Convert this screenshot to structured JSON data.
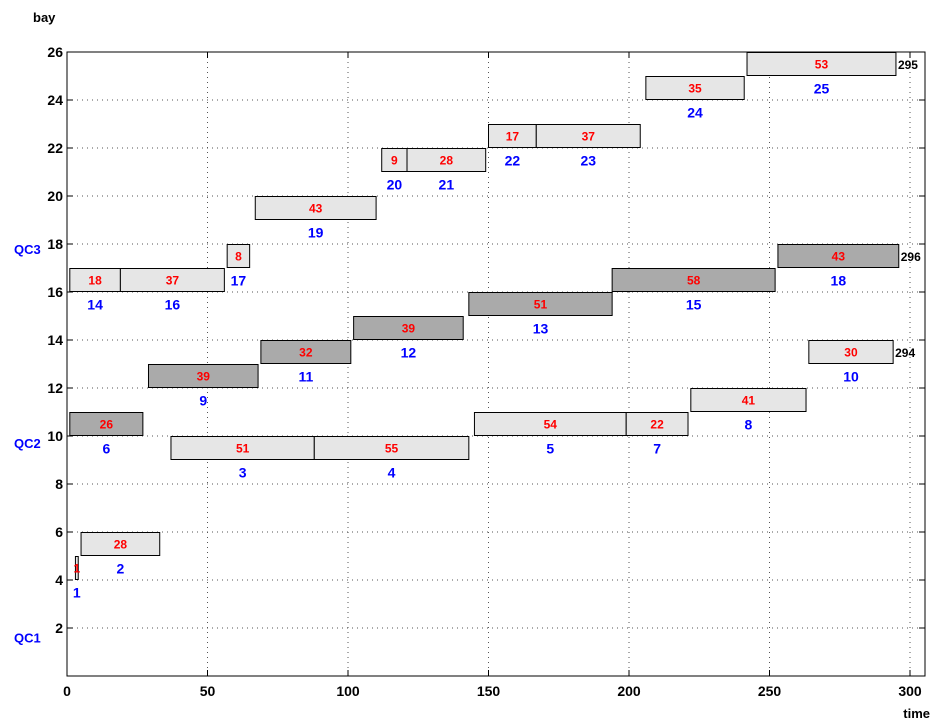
{
  "chart_data": {
    "type": "gantt",
    "title": "",
    "xlabel": "time",
    "ylabel": "bay",
    "xlim": [
      0,
      305
    ],
    "ylim": [
      0,
      26
    ],
    "xticks": [
      0,
      50,
      100,
      150,
      200,
      250,
      300
    ],
    "yticks": [
      2,
      4,
      6,
      8,
      10,
      12,
      14,
      16,
      18,
      20,
      22,
      24,
      26
    ],
    "grid": true,
    "colors": {
      "light_bar": "#e6e6e6",
      "dark_bar": "#aaaaaa",
      "duration_text": "#ff0000",
      "id_text": "#0000ff",
      "qc_text": "#0000ff",
      "end_text": "#000000"
    },
    "crane_labels": [
      {
        "label": "QC1",
        "bay": 1.6
      },
      {
        "label": "QC2",
        "bay": 9.7
      },
      {
        "label": "QC3",
        "bay": 17.8
      }
    ],
    "tasks": [
      {
        "id": "1",
        "start": 3,
        "duration": "1",
        "end": 4,
        "bay": 4.5,
        "shade": "light"
      },
      {
        "id": "2",
        "start": 5,
        "duration": "28",
        "end": 33,
        "bay": 5.5,
        "shade": "light"
      },
      {
        "id": "6",
        "start": 1,
        "duration": "26",
        "end": 27,
        "bay": 10.5,
        "shade": "dark"
      },
      {
        "id": "3",
        "start": 37,
        "duration": "51",
        "end": 88,
        "bay": 9.5,
        "shade": "light"
      },
      {
        "id": "4",
        "start": 88,
        "duration": "55",
        "end": 143,
        "bay": 9.5,
        "shade": "light"
      },
      {
        "id": "9",
        "start": 29,
        "duration": "39",
        "end": 68,
        "bay": 12.5,
        "shade": "dark"
      },
      {
        "id": "11",
        "start": 69,
        "duration": "32",
        "end": 101,
        "bay": 13.5,
        "shade": "dark"
      },
      {
        "id": "12",
        "start": 102,
        "duration": "39",
        "end": 141,
        "bay": 14.5,
        "shade": "dark"
      },
      {
        "id": "13",
        "start": 143,
        "duration": "51",
        "end": 194,
        "bay": 15.5,
        "shade": "dark"
      },
      {
        "id": "15",
        "start": 194,
        "duration": "58",
        "end": 252,
        "bay": 16.5,
        "shade": "dark"
      },
      {
        "id": "18",
        "start": 253,
        "duration": "43",
        "end": 296,
        "bay": 17.5,
        "shade": "dark"
      },
      {
        "id": "14",
        "start": 1,
        "duration": "18",
        "end": 19,
        "bay": 16.5,
        "shade": "light"
      },
      {
        "id": "16",
        "start": 19,
        "duration": "37",
        "end": 56,
        "bay": 16.5,
        "shade": "light"
      },
      {
        "id": "17",
        "start": 57,
        "duration": "8",
        "end": 65,
        "bay": 17.5,
        "shade": "light"
      },
      {
        "id": "19",
        "start": 67,
        "duration": "43",
        "end": 110,
        "bay": 19.5,
        "shade": "light"
      },
      {
        "id": "20",
        "start": 112,
        "duration": "9",
        "end": 121,
        "bay": 21.5,
        "shade": "light"
      },
      {
        "id": "21",
        "start": 121,
        "duration": "28",
        "end": 149,
        "bay": 21.5,
        "shade": "light"
      },
      {
        "id": "22",
        "start": 150,
        "duration": "17",
        "end": 167,
        "bay": 22.5,
        "shade": "light"
      },
      {
        "id": "23",
        "start": 167,
        "duration": "37",
        "end": 204,
        "bay": 22.5,
        "shade": "light"
      },
      {
        "id": "24",
        "start": 206,
        "duration": "35",
        "end": 241,
        "bay": 24.5,
        "shade": "light"
      },
      {
        "id": "25",
        "start": 242,
        "duration": "53",
        "end": 295,
        "bay": 25.5,
        "shade": "light"
      },
      {
        "id": "5",
        "start": 145,
        "duration": "54",
        "end": 199,
        "bay": 10.5,
        "shade": "light"
      },
      {
        "id": "7",
        "start": 199,
        "duration": "22",
        "end": 221,
        "bay": 10.5,
        "shade": "light"
      },
      {
        "id": "8",
        "start": 222,
        "duration": "41",
        "end": 263,
        "bay": 11.5,
        "shade": "light"
      },
      {
        "id": "10",
        "start": 264,
        "duration": "30",
        "end": 294,
        "bay": 13.5,
        "shade": "light"
      }
    ],
    "end_labels": [
      {
        "text": "295",
        "x": 295,
        "bay": 25.5
      },
      {
        "text": "296",
        "x": 296,
        "bay": 17.5
      },
      {
        "text": "294",
        "x": 294,
        "bay": 13.5
      }
    ]
  }
}
